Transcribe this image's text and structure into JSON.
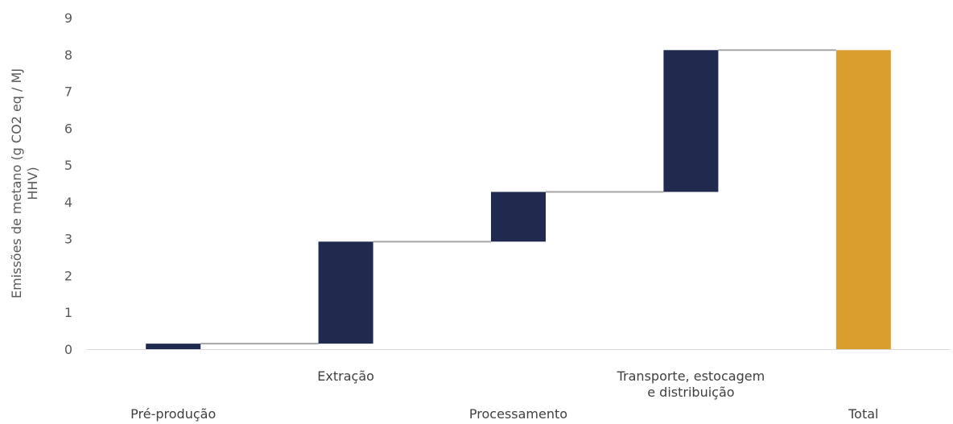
{
  "chart_data": {
    "type": "bar",
    "subtype": "waterfall",
    "title": "",
    "ylabel_lines": [
      "Emissões de metano (g CO2 eq / MJ",
      "HHV)"
    ],
    "xlabel": "",
    "ylim": [
      0,
      9
    ],
    "yticks": [
      "0",
      "1",
      "2",
      "3",
      "4",
      "5",
      "6",
      "7",
      "8",
      "9"
    ],
    "categories": [
      {
        "label_lines": [
          "Pré-produção"
        ],
        "label_row": "lower"
      },
      {
        "label_lines": [
          "Extração"
        ],
        "label_row": "upper"
      },
      {
        "label_lines": [
          "Processamento"
        ],
        "label_row": "lower"
      },
      {
        "label_lines": [
          "Transporte, estocagem",
          "e distribuição"
        ],
        "label_row": "upper"
      },
      {
        "label_lines": [
          "Total"
        ],
        "label_row": "lower"
      }
    ],
    "bars": [
      {
        "start": 0,
        "end": 0.15,
        "kind": "increment"
      },
      {
        "start": 0.15,
        "end": 2.92,
        "kind": "increment"
      },
      {
        "start": 2.92,
        "end": 4.27,
        "kind": "increment"
      },
      {
        "start": 4.27,
        "end": 8.12,
        "kind": "increment"
      },
      {
        "start": 0,
        "end": 8.12,
        "kind": "total"
      }
    ],
    "colors": {
      "increment": "#1f2a4e",
      "total": "#d99e2e",
      "connector": "#a6a6a6",
      "axis": "#d9d9d9"
    },
    "grid": false,
    "legend": "none"
  }
}
